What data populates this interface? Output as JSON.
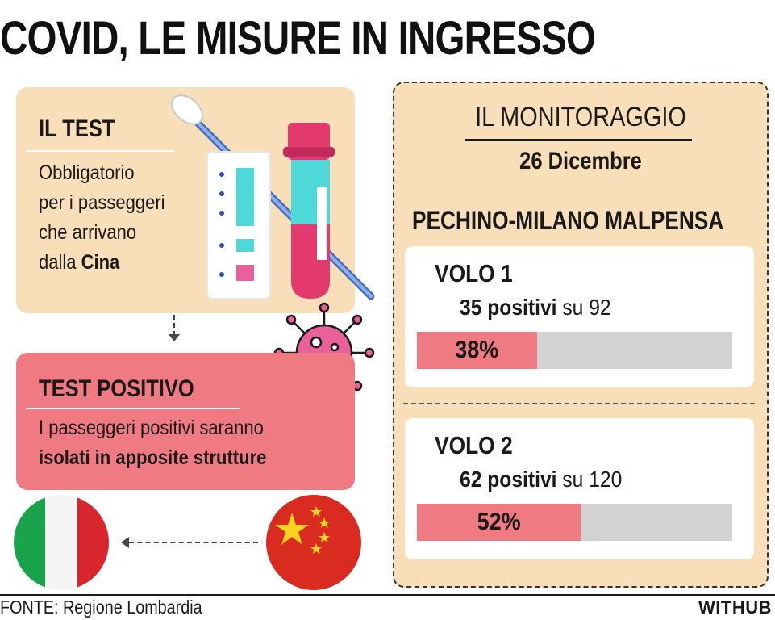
{
  "title": "COVID, LE MISURE IN INGRESSO",
  "test_card": {
    "heading": "IL TEST",
    "lines": [
      "Obbligatorio",
      "per i passeggeri",
      "che arrivano"
    ],
    "last_prefix": "dalla ",
    "last_bold": "Cina"
  },
  "positive_card": {
    "heading": "TEST POSITIVO",
    "line1": "I passeggeri positivi saranno",
    "line2_bold": "isolati in apposite strutture"
  },
  "monitoring": {
    "label": "IL MONITORAGGIO",
    "date": "26 Dicembre",
    "route": "PECHINO-MILANO MALPENSA",
    "flights": [
      {
        "title": "VOLO 1",
        "positives": "35 positivi",
        "total": " su 92",
        "percent_label": "38%",
        "percent": 38
      },
      {
        "title": "VOLO 2",
        "positives": "62 positivi",
        "total": " su 120",
        "percent_label": "52%",
        "percent": 52
      }
    ]
  },
  "footer": {
    "source": "FONTE: Regione Lombardia",
    "brand": "WITHUB"
  },
  "colors": {
    "card_beige": "#f9dfb9",
    "card_pink": "#f07a82",
    "bar_fill": "#f07a82",
    "bar_track": "#d2d2d2",
    "virus": "#e8619a",
    "tube_cap": "#e23a6f",
    "tube_teal": "#4fd8d8"
  },
  "icons": [
    "swab-icon",
    "test-strip-icon",
    "test-tube-icon",
    "virus-icon",
    "italy-flag-icon",
    "china-flag-icon",
    "arrow-down-icon",
    "arrow-left-icon"
  ]
}
